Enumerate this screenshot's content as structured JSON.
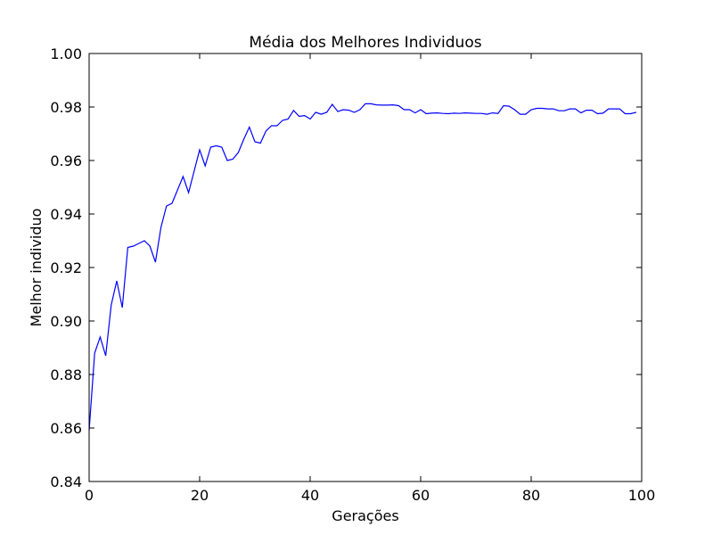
{
  "chart_data": {
    "type": "line",
    "title": "Média dos Melhores Individuos",
    "xlabel": "Gerações",
    "ylabel": "Melhor individuo",
    "xlim": [
      0,
      100
    ],
    "ylim": [
      0.84,
      1.0
    ],
    "x_ticks": [
      "0",
      "20",
      "40",
      "60",
      "80",
      "100"
    ],
    "y_ticks": [
      "0.84",
      "0.86",
      "0.88",
      "0.90",
      "0.92",
      "0.94",
      "0.96",
      "0.98",
      "1.00"
    ],
    "grid": false,
    "line_color": "#0000ff",
    "series": [
      {
        "x": [
          0,
          1,
          2,
          3,
          4,
          5,
          6,
          7,
          8,
          9,
          10,
          11,
          12,
          13,
          14,
          15,
          16,
          17,
          18,
          19,
          20,
          21,
          22,
          23,
          24,
          25,
          26,
          27,
          28,
          29,
          30,
          31,
          32,
          33,
          34,
          35,
          36,
          37,
          38,
          39,
          40,
          41,
          42,
          43,
          44,
          45,
          46,
          47,
          48,
          49,
          50,
          51,
          52,
          53,
          54,
          55,
          56,
          57,
          58,
          59,
          60,
          61,
          62,
          63,
          64,
          65,
          66,
          67,
          68,
          69,
          70,
          71,
          72,
          73,
          74,
          75,
          76,
          77,
          78,
          79,
          80,
          81,
          82,
          83,
          84,
          85,
          86,
          87,
          88,
          89,
          90,
          91,
          92,
          93,
          94,
          95,
          96,
          97,
          98,
          99
        ],
        "values": [
          0.859,
          0.888,
          0.894,
          0.887,
          0.906,
          0.915,
          0.905,
          0.9275,
          0.928,
          0.929,
          0.93,
          0.928,
          0.922,
          0.935,
          0.943,
          0.944,
          0.949,
          0.954,
          0.948,
          0.956,
          0.964,
          0.958,
          0.965,
          0.9655,
          0.965,
          0.96,
          0.9605,
          0.963,
          0.968,
          0.9725,
          0.967,
          0.9665,
          0.971,
          0.973,
          0.973,
          0.975,
          0.9755,
          0.9787,
          0.9765,
          0.9768,
          0.9755,
          0.978,
          0.9773,
          0.978,
          0.981,
          0.9783,
          0.979,
          0.9788,
          0.978,
          0.979,
          0.9812,
          0.9812,
          0.9808,
          0.9807,
          0.9807,
          0.9808,
          0.9805,
          0.979,
          0.979,
          0.9778,
          0.979,
          0.9775,
          0.9777,
          0.9778,
          0.9776,
          0.9775,
          0.9777,
          0.9776,
          0.9778,
          0.9777,
          0.9776,
          0.9776,
          0.9773,
          0.9778,
          0.9776,
          0.9805,
          0.9803,
          0.979,
          0.9773,
          0.9773,
          0.979,
          0.9795,
          0.9795,
          0.9793,
          0.9793,
          0.9786,
          0.9786,
          0.9793,
          0.9793,
          0.9778,
          0.9788,
          0.9788,
          0.9775,
          0.9777,
          0.9793,
          0.9793,
          0.9793,
          0.9775,
          0.9775,
          0.978
        ]
      }
    ]
  }
}
